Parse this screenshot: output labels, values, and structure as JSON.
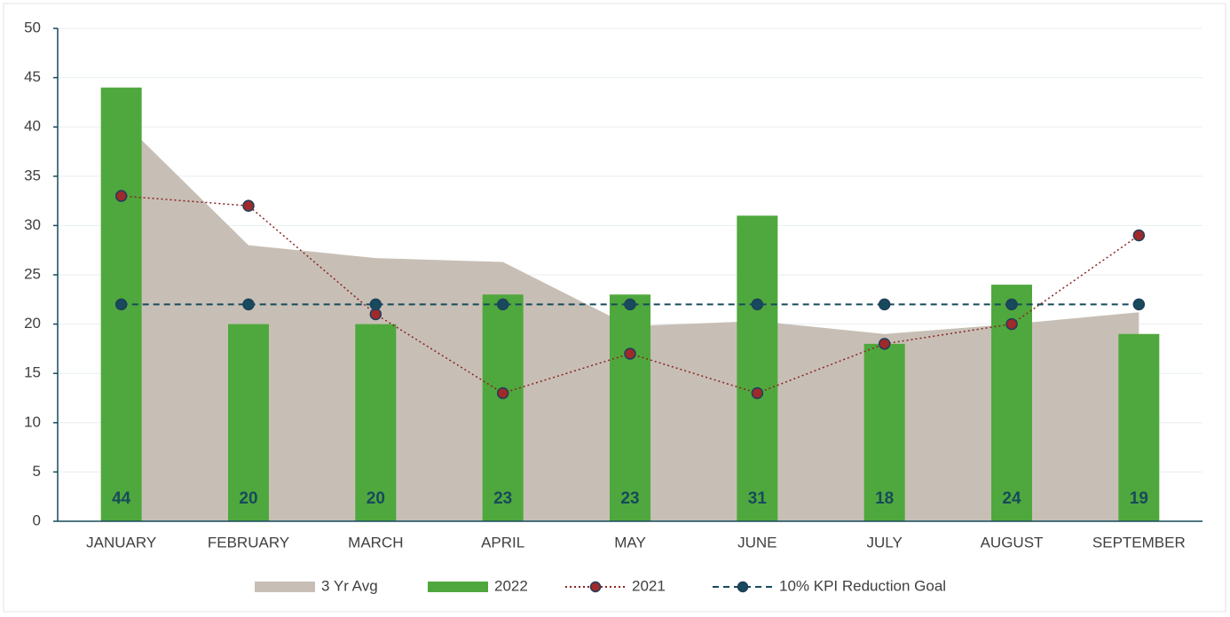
{
  "chart_data": {
    "type": "combo",
    "categories": [
      "JANUARY",
      "FEBRUARY",
      "MARCH",
      "APRIL",
      "MAY",
      "JUNE",
      "JULY",
      "AUGUST",
      "SEPTEMBER"
    ],
    "series": [
      {
        "name": "3 Yr Avg",
        "type": "area",
        "color": "#c7bfb5",
        "values": [
          40.7,
          28,
          26.7,
          26.3,
          19.8,
          20.3,
          19,
          20,
          21.2
        ]
      },
      {
        "name": "2022",
        "type": "bar",
        "color": "#4fa83d",
        "values": [
          44,
          20,
          20,
          23,
          23,
          31,
          18,
          24,
          19
        ],
        "data_labels": true
      },
      {
        "name": "2021",
        "type": "line",
        "color": "#8b2323",
        "marker_color": "#9e2a2b",
        "dash": "dotted",
        "values": [
          33,
          32,
          21,
          13,
          17,
          13,
          18,
          20,
          29
        ]
      },
      {
        "name": "10% KPI Reduction Goal",
        "type": "line",
        "color": "#174a5c",
        "marker_color": "#174a5c",
        "dash": "dashed",
        "values": [
          22,
          22,
          22,
          22,
          22,
          22,
          22,
          22,
          22
        ]
      }
    ],
    "ylim": [
      0,
      50
    ],
    "yticks": [
      0,
      5,
      10,
      15,
      20,
      25,
      30,
      35,
      40,
      45,
      50
    ],
    "grid": true,
    "legend": "bottom"
  }
}
